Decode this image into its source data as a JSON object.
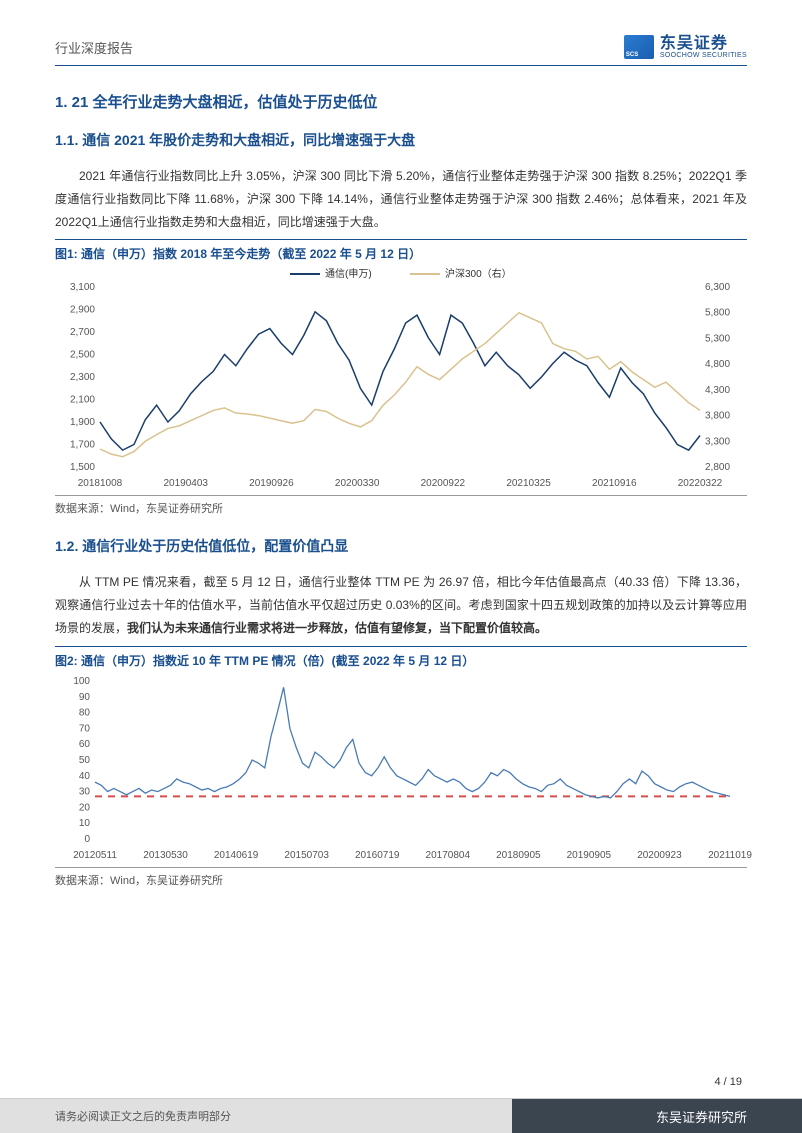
{
  "header": {
    "report_type": "行业深度报告",
    "logo_cn": "东吴证券",
    "logo_en": "SOOCHOW SECURITIES"
  },
  "section1": {
    "title": "1. 21 全年行业走势大盘相近，估值处于历史低位"
  },
  "section1_1": {
    "title": "1.1. 通信 2021 年股价走势和大盘相近，同比增速强于大盘",
    "para": "2021 年通信行业指数同比上升 3.05%，沪深 300 同比下滑 5.20%，通信行业整体走势强于沪深 300 指数 8.25%；2022Q1 季度通信行业指数同比下降 11.68%，沪深 300 下降 14.14%，通信行业整体走势强于沪深 300 指数 2.46%；总体看来，2021 年及 2022Q1上通信行业指数走势和大盘相近，同比增速强于大盘。"
  },
  "fig1": {
    "title": "图1: 通信（申万）指数 2018 年至今走势（截至 2022 年 5 月 12 日）",
    "legend": {
      "s1": "通信(申万)",
      "s2": "沪深300（右）"
    },
    "y_left": {
      "ticks": [
        1500,
        1700,
        1900,
        2100,
        2300,
        2500,
        2700,
        2900,
        3100
      ],
      "color": "#1a3d6b"
    },
    "y_right": {
      "ticks": [
        2800,
        3300,
        3800,
        4300,
        4800,
        5300,
        5800,
        6300
      ],
      "color": "#d9c28f"
    },
    "x_labels": [
      "20181008",
      "20190403",
      "20190926",
      "20200330",
      "20200922",
      "20210325",
      "20210916",
      "20220322"
    ],
    "series1_color": "#1a3d6b",
    "series2_color": "#d9c28f",
    "background_color": "#ffffff",
    "series1": [
      1900,
      1750,
      1650,
      1700,
      1920,
      2050,
      1900,
      2000,
      2150,
      2260,
      2350,
      2500,
      2400,
      2550,
      2680,
      2730,
      2600,
      2500,
      2670,
      2880,
      2800,
      2600,
      2450,
      2200,
      2050,
      2350,
      2550,
      2780,
      2850,
      2650,
      2500,
      2850,
      2780,
      2600,
      2400,
      2520,
      2400,
      2320,
      2200,
      2300,
      2420,
      2520,
      2450,
      2400,
      2250,
      2120,
      2380,
      2250,
      2150,
      1980,
      1850,
      1700,
      1650,
      1780
    ],
    "series2": [
      3150,
      3050,
      3000,
      3100,
      3300,
      3430,
      3550,
      3600,
      3700,
      3800,
      3900,
      3950,
      3850,
      3830,
      3800,
      3750,
      3700,
      3650,
      3700,
      3920,
      3880,
      3750,
      3650,
      3580,
      3700,
      4000,
      4200,
      4450,
      4750,
      4600,
      4500,
      4700,
      4900,
      5050,
      5200,
      5400,
      5600,
      5800,
      5700,
      5600,
      5200,
      5100,
      5050,
      4900,
      4950,
      4700,
      4850,
      4650,
      4500,
      4350,
      4450,
      4250,
      4050,
      3900
    ],
    "source": "数据来源：Wind，东吴证券研究所"
  },
  "section1_2": {
    "title": "1.2. 通信行业处于历史估值低位，配置价值凸显",
    "para_pre": "从 TTM PE 情况来看，截至 5 月 12 日，通信行业整体 TTM PE 为 26.97 倍，相比今年估值最高点（40.33 倍）下降 13.36，观察通信行业过去十年的估值水平，当前估值水平仅超过历史 0.03%的区间。考虑到国家十四五规划政策的加持以及云计算等应用场景的发展，",
    "para_bold": "我们认为未来通信行业需求将进一步释放，估值有望修复，当下配置价值较高。"
  },
  "fig2": {
    "title": "图2: 通信（申万）指数近 10 年 TTM PE 情况（倍）(截至 2022 年 5 月 12 日）",
    "y": {
      "ticks": [
        0,
        10,
        20,
        30,
        40,
        50,
        60,
        70,
        80,
        90,
        100
      ],
      "color": "#4a7bb5"
    },
    "x_labels": [
      "20120511",
      "20130530",
      "20140619",
      "20150703",
      "20160719",
      "20170804",
      "20180905",
      "20190905",
      "20200923",
      "20211019"
    ],
    "series_color": "#4a7bb5",
    "baseline_color": "#d94c4c",
    "baseline_value": 27,
    "background_color": "#ffffff",
    "series": [
      36,
      34,
      30,
      32,
      30,
      28,
      30,
      32,
      29,
      31,
      30,
      32,
      34,
      38,
      36,
      35,
      33,
      31,
      32,
      30,
      32,
      33,
      35,
      38,
      42,
      50,
      48,
      45,
      65,
      80,
      96,
      70,
      58,
      48,
      45,
      55,
      52,
      48,
      45,
      50,
      58,
      63,
      48,
      42,
      40,
      45,
      52,
      45,
      40,
      38,
      36,
      34,
      38,
      44,
      40,
      38,
      36,
      38,
      36,
      32,
      30,
      32,
      36,
      42,
      40,
      44,
      42,
      38,
      35,
      33,
      32,
      30,
      34,
      35,
      38,
      34,
      32,
      30,
      28,
      27,
      26,
      27,
      26,
      30,
      35,
      38,
      35,
      43,
      40,
      35,
      33,
      31,
      30,
      33,
      35,
      36,
      34,
      32,
      30,
      29,
      28,
      27
    ],
    "source": "数据来源：Wind，东吴证券研究所"
  },
  "footer": {
    "page": "4 / 19",
    "disclaimer": "请务必阅读正文之后的免责声明部分",
    "org": "东吴证券研究所"
  }
}
